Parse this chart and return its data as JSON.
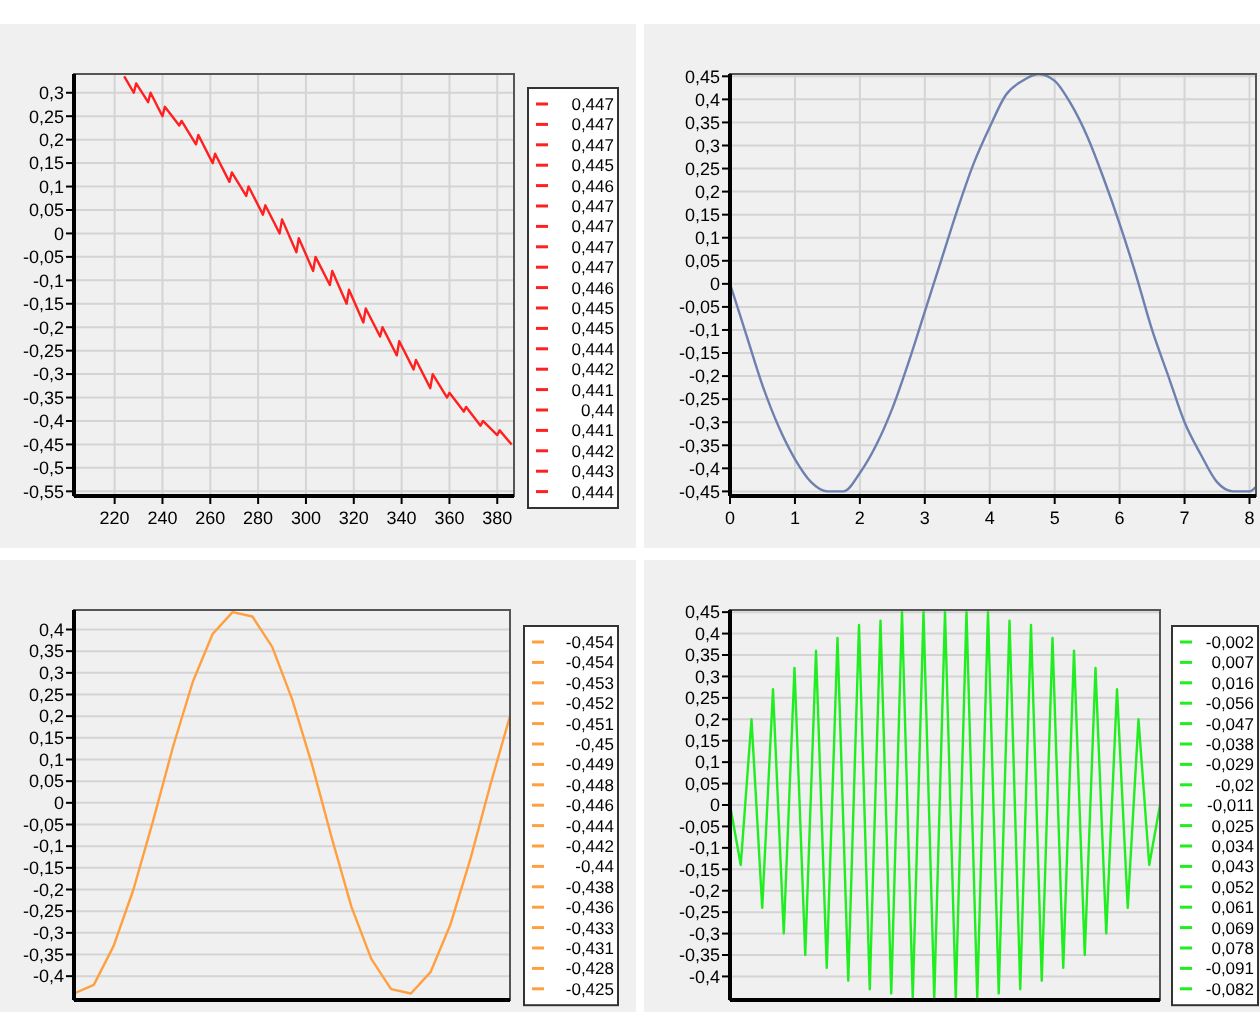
{
  "chart_data": [
    {
      "type": "line",
      "xlim": [
        203,
        387
      ],
      "xticks": [
        220,
        240,
        260,
        280,
        300,
        320,
        340,
        360,
        380
      ],
      "ylim": [
        -0.56,
        0.34
      ],
      "yticks": [
        {
          "value": 0.3,
          "label": "0,3"
        },
        {
          "value": 0.25,
          "label": "0,25"
        },
        {
          "value": 0.2,
          "label": "0,2"
        },
        {
          "value": 0.15,
          "label": "0,15"
        },
        {
          "value": 0.1,
          "label": "0,1"
        },
        {
          "value": 0.05,
          "label": "0,05"
        },
        {
          "value": 0,
          "label": "0"
        },
        {
          "value": -0.05,
          "label": "-0,05"
        },
        {
          "value": -0.1,
          "label": "-0,1"
        },
        {
          "value": -0.15,
          "label": "-0,15"
        },
        {
          "value": -0.2,
          "label": "-0,2"
        },
        {
          "value": -0.25,
          "label": "-0,25"
        },
        {
          "value": -0.3,
          "label": "-0,3"
        },
        {
          "value": -0.35,
          "label": "-0,35"
        },
        {
          "value": -0.4,
          "label": "-0,4"
        },
        {
          "value": -0.45,
          "label": "-0,45"
        },
        {
          "value": -0.5,
          "label": "-0,5"
        },
        {
          "value": -0.55,
          "label": "-0,55"
        }
      ],
      "grid": true,
      "series": [
        {
          "color": "#ff2020",
          "x": [
            224,
            228,
            229,
            234,
            235,
            240,
            241,
            247,
            248,
            254,
            255,
            261,
            262,
            268,
            269,
            275,
            276,
            282,
            283,
            289,
            290,
            296,
            297,
            303,
            304,
            310,
            311,
            317,
            318,
            324,
            325,
            331,
            332,
            338,
            339,
            345,
            346,
            352,
            353,
            359,
            360,
            366,
            367,
            373,
            374,
            380,
            381,
            386
          ],
          "values": [
            0.335,
            0.3,
            0.32,
            0.28,
            0.3,
            0.25,
            0.27,
            0.23,
            0.24,
            0.19,
            0.21,
            0.15,
            0.17,
            0.11,
            0.13,
            0.08,
            0.1,
            0.04,
            0.06,
            0,
            0.03,
            -0.04,
            -0.01,
            -0.08,
            -0.05,
            -0.11,
            -0.08,
            -0.15,
            -0.12,
            -0.19,
            -0.16,
            -0.22,
            -0.2,
            -0.26,
            -0.23,
            -0.29,
            -0.27,
            -0.33,
            -0.3,
            -0.35,
            -0.34,
            -0.38,
            -0.37,
            -0.41,
            -0.4,
            -0.43,
            -0.42,
            -0.45
          ]
        }
      ],
      "annotations": [
        "0,447",
        "0,447",
        "0,447",
        "0,445",
        "0,446",
        "0,447",
        "0,447",
        "0,447",
        "0,447",
        "0,446",
        "0,445",
        "0,445",
        "0,444",
        "0,442",
        "0,441",
        "0,44",
        "0,441",
        "0,442",
        "0,443",
        "0,444"
      ]
    },
    {
      "type": "line",
      "xlim": [
        0,
        8.1
      ],
      "xticks": [
        0,
        1,
        2,
        3,
        4,
        5,
        6,
        7,
        8
      ],
      "ylim": [
        -0.46,
        0.455
      ],
      "yticks": [
        {
          "value": 0.45,
          "label": "0,45"
        },
        {
          "value": 0.4,
          "label": "0,4"
        },
        {
          "value": 0.35,
          "label": "0,35"
        },
        {
          "value": 0.3,
          "label": "0,3"
        },
        {
          "value": 0.25,
          "label": "0,25"
        },
        {
          "value": 0.2,
          "label": "0,2"
        },
        {
          "value": 0.15,
          "label": "0,15"
        },
        {
          "value": 0.1,
          "label": "0,1"
        },
        {
          "value": 0.05,
          "label": "0,05"
        },
        {
          "value": 0,
          "label": "0"
        },
        {
          "value": -0.05,
          "label": "-0,05"
        },
        {
          "value": -0.1,
          "label": "-0,1"
        },
        {
          "value": -0.15,
          "label": "-0,15"
        },
        {
          "value": -0.2,
          "label": "-0,2"
        },
        {
          "value": -0.25,
          "label": "-0,25"
        },
        {
          "value": -0.3,
          "label": "-0,3"
        },
        {
          "value": -0.35,
          "label": "-0,35"
        },
        {
          "value": -0.4,
          "label": "-0,4"
        },
        {
          "value": -0.45,
          "label": "-0,45"
        }
      ],
      "grid": true,
      "series": [
        {
          "color": "#6d80b0",
          "x": [
            0,
            0.25,
            0.5,
            0.75,
            1,
            1.25,
            1.5,
            1.75,
            2,
            2.25,
            2.5,
            2.75,
            3,
            3.25,
            3.5,
            3.75,
            4,
            4.25,
            4.5,
            4.75,
            5,
            5.25,
            5.5,
            5.75,
            6,
            6.25,
            6.5,
            6.75,
            7,
            7.25,
            7.5,
            7.75,
            8,
            8.1
          ],
          "values": [
            0,
            -0.11,
            -0.22,
            -0.31,
            -0.38,
            -0.43,
            -0.45,
            -0.45,
            -0.41,
            -0.35,
            -0.27,
            -0.17,
            -0.06,
            0.05,
            0.16,
            0.26,
            0.34,
            0.41,
            0.44,
            0.455,
            0.44,
            0.39,
            0.32,
            0.23,
            0.13,
            0.02,
            -0.1,
            -0.2,
            -0.3,
            -0.37,
            -0.43,
            -0.45,
            -0.45,
            -0.44
          ]
        }
      ]
    },
    {
      "type": "line",
      "tick_labels": "y",
      "categories": [
        null,
        null,
        null,
        null,
        null,
        null,
        null,
        null,
        null,
        null,
        null,
        null,
        null,
        null,
        null,
        null,
        null,
        null,
        null,
        null,
        null,
        null,
        null
      ],
      "ylim": [
        -0.455,
        0.445
      ],
      "yticks": [
        {
          "value": 0.4,
          "label": "0,4"
        },
        {
          "value": 0.35,
          "label": "0,35"
        },
        {
          "value": 0.3,
          "label": "0,3"
        },
        {
          "value": 0.25,
          "label": "0,25"
        },
        {
          "value": 0.2,
          "label": "0,2"
        },
        {
          "value": 0.15,
          "label": "0,15"
        },
        {
          "value": 0.1,
          "label": "0,1"
        },
        {
          "value": 0.05,
          "label": "0,05"
        },
        {
          "value": 0,
          "label": "0"
        },
        {
          "value": -0.05,
          "label": "-0,05"
        },
        {
          "value": -0.1,
          "label": "-0,1"
        },
        {
          "value": -0.15,
          "label": "-0,15"
        },
        {
          "value": -0.2,
          "label": "-0,2"
        },
        {
          "value": -0.25,
          "label": "-0,25"
        },
        {
          "value": -0.3,
          "label": "-0,3"
        },
        {
          "value": -0.35,
          "label": "-0,35"
        },
        {
          "value": -0.4,
          "label": "-0,4"
        }
      ],
      "grid": true,
      "series": [
        {
          "color": "#ffa040",
          "values": [
            -0.44,
            -0.42,
            -0.33,
            -0.2,
            -0.04,
            0.13,
            0.28,
            0.39,
            0.44,
            0.43,
            0.36,
            0.24,
            0.09,
            -0.08,
            -0.24,
            -0.36,
            -0.43,
            -0.44,
            -0.39,
            -0.28,
            -0.13,
            0.04,
            0.2
          ]
        }
      ],
      "annotations": [
        "-0,454",
        "-0,454",
        "-0,453",
        "-0,452",
        "-0,451",
        "-0,45",
        "-0,449",
        "-0,448",
        "-0,446",
        "-0,444",
        "-0,442",
        "-0,44",
        "-0,438",
        "-0,436",
        "-0,433",
        "-0,431",
        "-0,428",
        "-0,425"
      ]
    },
    {
      "type": "line",
      "tick_labels": "y",
      "categories": [
        null,
        null,
        null,
        null,
        null,
        null,
        null,
        null,
        null,
        null,
        null,
        null,
        null,
        null,
        null,
        null,
        null,
        null,
        null,
        null,
        null,
        null,
        null,
        null,
        null,
        null,
        null,
        null,
        null,
        null,
        null,
        null,
        null,
        null,
        null,
        null,
        null,
        null,
        null,
        null,
        null
      ],
      "ylim": [
        -0.455,
        0.455
      ],
      "yticks": [
        {
          "value": 0.45,
          "label": "0,45"
        },
        {
          "value": 0.4,
          "label": "0,4"
        },
        {
          "value": 0.35,
          "label": "0,35"
        },
        {
          "value": 0.3,
          "label": "0,3"
        },
        {
          "value": 0.25,
          "label": "0,25"
        },
        {
          "value": 0.2,
          "label": "0,2"
        },
        {
          "value": 0.15,
          "label": "0,15"
        },
        {
          "value": 0.1,
          "label": "0,1"
        },
        {
          "value": 0.05,
          "label": "0,05"
        },
        {
          "value": 0,
          "label": "0"
        },
        {
          "value": -0.05,
          "label": "-0,05"
        },
        {
          "value": -0.1,
          "label": "-0,1"
        },
        {
          "value": -0.15,
          "label": "-0,15"
        },
        {
          "value": -0.2,
          "label": "-0,2"
        },
        {
          "value": -0.25,
          "label": "-0,25"
        },
        {
          "value": -0.3,
          "label": "-0,3"
        },
        {
          "value": -0.35,
          "label": "-0,35"
        },
        {
          "value": -0.4,
          "label": "-0,4"
        }
      ],
      "grid": true,
      "series": [
        {
          "color": "#20ee20",
          "values": [
            0,
            -0.14,
            0.2,
            -0.24,
            0.27,
            -0.3,
            0.32,
            -0.35,
            0.36,
            -0.38,
            0.39,
            -0.41,
            0.42,
            -0.43,
            0.43,
            -0.44,
            0.45,
            -0.45,
            0.45,
            -0.45,
            0.45,
            -0.45,
            0.45,
            -0.45,
            0.45,
            -0.44,
            0.43,
            -0.43,
            0.42,
            -0.41,
            0.39,
            -0.38,
            0.36,
            -0.35,
            0.32,
            -0.3,
            0.27,
            -0.24,
            0.2,
            -0.14,
            0
          ]
        }
      ],
      "annotations": [
        "-0,002",
        "0,007",
        "0,016",
        "-0,056",
        "-0,047",
        "-0,038",
        "-0,029",
        "-0,02",
        "-0,011",
        "0,025",
        "0,034",
        "0,043",
        "0,052",
        "0,061",
        "0,069",
        "0,078",
        "-0,091",
        "-0,082"
      ]
    }
  ]
}
